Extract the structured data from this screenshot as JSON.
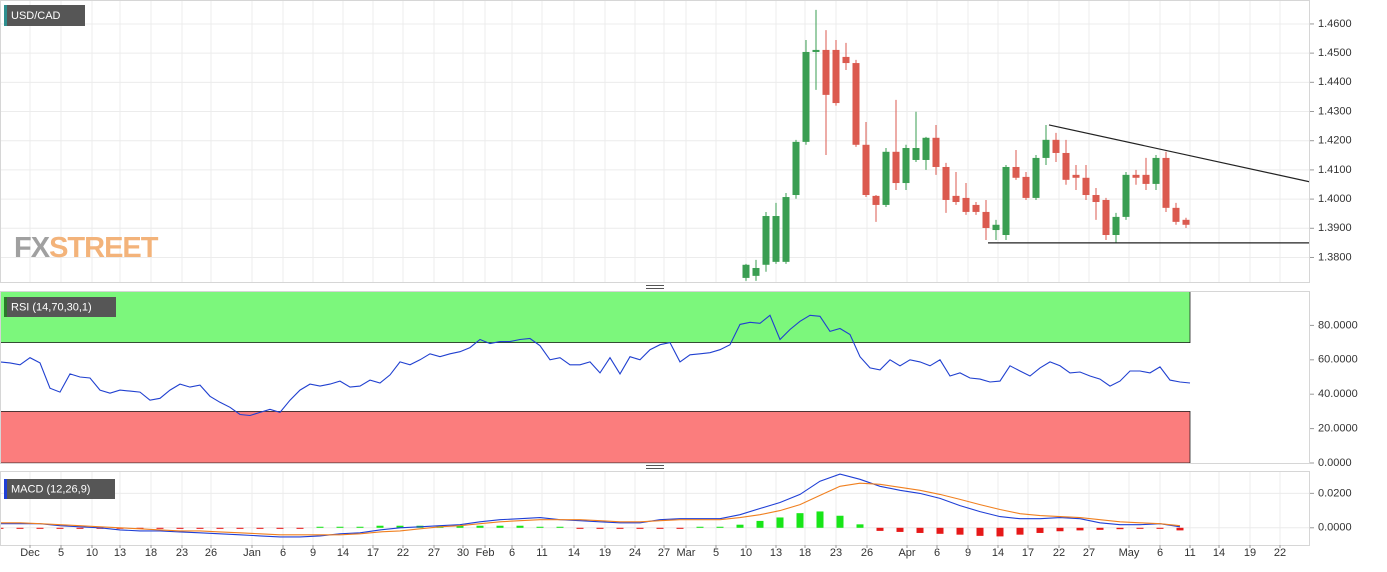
{
  "chart_data": [
    {
      "type": "candlestick",
      "title": "USD/CAD",
      "watermark": [
        "FX",
        "STREET"
      ],
      "up_color": "#3a9e52",
      "down_color": "#db5a4f",
      "grid": true,
      "xlim": [
        0,
        131
      ],
      "ylim": [
        1.3716,
        1.4682
      ],
      "yticks": [
        {
          "value": 1.38,
          "label": "1.3800"
        },
        {
          "value": 1.39,
          "label": "1.3900"
        },
        {
          "value": 1.4,
          "label": "1.4000"
        },
        {
          "value": 1.41,
          "label": "1.4100"
        },
        {
          "value": 1.42,
          "label": "1.4200"
        },
        {
          "value": 1.43,
          "label": "1.4300"
        },
        {
          "value": 1.44,
          "label": "1.4400"
        },
        {
          "value": 1.45,
          "label": "1.4500"
        },
        {
          "value": 1.46,
          "label": "1.4600"
        }
      ],
      "x": [
        74.6,
        75.6,
        76.6,
        77.6,
        78.6,
        79.6,
        80.6,
        81.6,
        82.6,
        83.6,
        84.6,
        85.6,
        86.6,
        87.6,
        88.6,
        89.6,
        90.6,
        91.6,
        92.6,
        93.6,
        94.6,
        95.6,
        96.6,
        97.6,
        98.6,
        99.6,
        100.6,
        101.6,
        102.6,
        103.6,
        104.6,
        105.6,
        106.6,
        107.6,
        108.6,
        109.6,
        110.6,
        111.6,
        112.6,
        113.6,
        114.6,
        115.6,
        116.6,
        117.6,
        118.6
      ],
      "open": [
        1.373,
        1.3737,
        1.3775,
        1.3785,
        1.3785,
        1.4014,
        1.4196,
        1.4504,
        1.4511,
        1.4511,
        1.4487,
        1.4466,
        1.4186,
        1.4011,
        1.398,
        1.4162,
        1.4055,
        1.4134,
        1.4134,
        1.421,
        1.411,
        1.4011,
        1.4004,
        1.398,
        1.3956,
        1.3894,
        1.3877,
        1.411,
        1.4076,
        1.4004,
        1.4141,
        1.4203,
        1.4158,
        1.4083,
        1.4073,
        1.4014,
        1.3997,
        1.3877,
        1.3939,
        1.4083,
        1.4083,
        1.4052,
        1.4141,
        1.397,
        1.3929
      ],
      "high": [
        1.3778,
        1.3792,
        1.3956,
        1.3987,
        1.4021,
        1.4203,
        1.4545,
        1.4648,
        1.4579,
        1.4545,
        1.4535,
        1.4477,
        1.4264,
        1.4014,
        1.4175,
        1.434,
        1.4186,
        1.4299,
        1.4213,
        1.4254,
        1.4124,
        1.4093,
        1.4055,
        1.399,
        1.3997,
        1.3929,
        1.4117,
        1.4168,
        1.4093,
        1.4151,
        1.4254,
        1.4227,
        1.4203,
        1.4117,
        1.4117,
        1.4038,
        1.4004,
        1.3953,
        1.4093,
        1.41,
        1.4141,
        1.4151,
        1.4162,
        1.3987,
        1.3936
      ],
      "low": [
        1.372,
        1.372,
        1.3751,
        1.3778,
        1.3778,
        1.4001,
        1.4186,
        1.4374,
        1.4151,
        1.432,
        1.4442,
        1.4179,
        1.4007,
        1.3922,
        1.3973,
        1.4031,
        1.4031,
        1.4127,
        1.41,
        1.4083,
        1.3953,
        1.398,
        1.3946,
        1.3946,
        1.386,
        1.386,
        1.386,
        1.4066,
        1.3997,
        1.3997,
        1.4117,
        1.4127,
        1.4049,
        1.4031,
        1.3997,
        1.3929,
        1.386,
        1.385,
        1.3929,
        1.4049,
        1.4031,
        1.4031,
        1.3956,
        1.3912,
        1.3901
      ],
      "close": [
        1.3775,
        1.3764,
        1.3942,
        1.3942,
        1.4007,
        1.4196,
        1.4504,
        1.4511,
        1.4357,
        1.4329,
        1.4466,
        1.4186,
        1.4014,
        1.398,
        1.4162,
        1.4055,
        1.4175,
        1.4175,
        1.421,
        1.411,
        1.3997,
        1.399,
        1.3956,
        1.3956,
        1.3901,
        1.3912,
        1.411,
        1.4073,
        1.4004,
        1.4141,
        1.4203,
        1.4158,
        1.4066,
        1.4073,
        1.4014,
        1.399,
        1.3877,
        1.3939,
        1.4083,
        1.4073,
        1.4052,
        1.4141,
        1.397,
        1.3922,
        1.3912
      ],
      "trendlines": [
        {
          "x": [
            104.9,
            131
          ],
          "y": [
            1.4254,
            1.4059
          ],
          "color": "#222222"
        },
        {
          "x": [
            98.8,
            131
          ],
          "y": [
            1.385,
            1.385
          ],
          "color": "#222222"
        }
      ]
    },
    {
      "type": "line",
      "title": "RSI (14,70,30,1)",
      "grid": false,
      "xlim": [
        0,
        131
      ],
      "ylim": [
        0,
        100
      ],
      "yticks": [
        {
          "value": 0,
          "label": "0.0000"
        },
        {
          "value": 20,
          "label": "20.0000"
        },
        {
          "value": 40,
          "label": "40.0000"
        },
        {
          "value": 60,
          "label": "60.0000"
        },
        {
          "value": 80,
          "label": "80.0000"
        }
      ],
      "bands": [
        {
          "from": 70,
          "to": 100,
          "xlim": [
            0,
            119
          ],
          "color": "#7cf77c"
        },
        {
          "from": 0,
          "to": 30,
          "xlim": [
            0,
            119
          ],
          "color": "#fb7d7d"
        }
      ],
      "x": [
        0,
        1,
        2,
        3,
        4,
        5,
        6,
        7,
        8,
        9,
        10,
        11,
        12,
        13,
        14,
        15,
        16,
        17,
        18,
        19,
        20,
        21,
        22,
        23,
        24,
        25,
        26,
        27,
        28,
        29,
        30,
        31,
        32,
        33,
        34,
        35,
        36,
        37,
        38,
        39,
        40,
        41,
        42,
        43,
        44,
        45,
        46,
        47,
        48,
        49,
        50,
        51,
        52,
        53,
        54,
        55,
        56,
        57,
        58,
        59,
        60,
        61,
        62,
        63,
        64,
        65,
        66,
        67,
        68,
        69,
        70,
        71,
        72,
        73,
        74,
        75,
        76,
        77,
        78,
        79,
        80,
        81,
        82,
        83,
        84,
        85,
        86,
        87,
        88,
        89,
        90,
        91,
        92,
        93,
        94,
        95,
        96,
        97,
        98,
        99,
        100,
        101,
        102,
        103,
        104,
        105,
        106,
        107,
        108,
        109,
        110,
        111,
        112,
        113,
        114,
        115,
        116,
        117,
        118,
        119
      ],
      "series": [
        {
          "color": "#2040d0",
          "values": [
            58.8,
            58.2,
            57.1,
            61.2,
            58.2,
            43.5,
            41.2,
            51.8,
            50.0,
            49.4,
            42.4,
            40.6,
            42.4,
            41.8,
            41.2,
            36.5,
            37.6,
            42.4,
            45.9,
            44.1,
            45.3,
            38.8,
            35.3,
            32.4,
            28.2,
            27.6,
            29.4,
            31.2,
            29.4,
            36.5,
            42.4,
            45.9,
            44.7,
            45.9,
            47.6,
            44.1,
            44.7,
            48.2,
            46.5,
            51.2,
            58.8,
            57.1,
            60.0,
            63.5,
            61.8,
            63.5,
            64.7,
            67.1,
            71.8,
            69.4,
            70.6,
            70.6,
            71.8,
            72.4,
            68.2,
            60.0,
            61.2,
            57.1,
            57.1,
            58.8,
            52.4,
            61.2,
            51.8,
            61.8,
            60.0,
            65.9,
            68.8,
            70.0,
            58.8,
            62.9,
            63.5,
            64.1,
            65.9,
            68.8,
            80.6,
            81.8,
            81.2,
            85.9,
            71.8,
            77.6,
            82.4,
            85.9,
            85.3,
            76.5,
            78.2,
            74.7,
            61.8,
            55.3,
            54.1,
            60.0,
            56.5,
            60.0,
            58.8,
            56.5,
            60.0,
            50.6,
            52.4,
            49.4,
            48.8,
            47.1,
            47.6,
            56.5,
            53.5,
            50.6,
            55.3,
            58.8,
            56.5,
            52.4,
            52.9,
            50.6,
            48.8,
            44.7,
            47.6,
            53.5,
            53.5,
            52.4,
            55.9,
            48.2,
            47.1,
            46.5
          ]
        }
      ]
    },
    {
      "type": "macd",
      "title": "MACD (12,26,9)",
      "grid": true,
      "xlim": [
        0,
        131
      ],
      "ylim": [
        -0.01,
        0.033
      ],
      "yticks": [
        {
          "value": 0,
          "label": "0.0000"
        },
        {
          "value": 0.02,
          "label": "0.0200"
        }
      ],
      "xticks": [
        {
          "value": 3.0,
          "label": "Dec"
        },
        {
          "value": 6.1,
          "label": "5"
        },
        {
          "value": 9.2,
          "label": "10"
        },
        {
          "value": 12.0,
          "label": "13"
        },
        {
          "value": 15.1,
          "label": "18"
        },
        {
          "value": 18.2,
          "label": "23"
        },
        {
          "value": 21.1,
          "label": "26"
        },
        {
          "value": 25.2,
          "label": "Jan"
        },
        {
          "value": 28.3,
          "label": "6"
        },
        {
          "value": 31.3,
          "label": "9"
        },
        {
          "value": 34.3,
          "label": "14"
        },
        {
          "value": 37.3,
          "label": "17"
        },
        {
          "value": 40.3,
          "label": "22"
        },
        {
          "value": 43.4,
          "label": "27"
        },
        {
          "value": 46.3,
          "label": "30"
        },
        {
          "value": 48.5,
          "label": "Feb"
        },
        {
          "value": 51.2,
          "label": "6"
        },
        {
          "value": 54.2,
          "label": "11"
        },
        {
          "value": 57.4,
          "label": "14"
        },
        {
          "value": 60.5,
          "label": "19"
        },
        {
          "value": 63.5,
          "label": "24"
        },
        {
          "value": 66.4,
          "label": "27"
        },
        {
          "value": 68.6,
          "label": "Mar"
        },
        {
          "value": 71.6,
          "label": "5"
        },
        {
          "value": 74.6,
          "label": "10"
        },
        {
          "value": 77.6,
          "label": "13"
        },
        {
          "value": 80.5,
          "label": "18"
        },
        {
          "value": 83.6,
          "label": "23"
        },
        {
          "value": 86.7,
          "label": "26"
        },
        {
          "value": 90.7,
          "label": "Apr"
        },
        {
          "value": 93.7,
          "label": "6"
        },
        {
          "value": 96.8,
          "label": "9"
        },
        {
          "value": 99.8,
          "label": "14"
        },
        {
          "value": 102.8,
          "label": "17"
        },
        {
          "value": 105.9,
          "label": "22"
        },
        {
          "value": 108.9,
          "label": "27"
        },
        {
          "value": 112.9,
          "label": "May"
        },
        {
          "value": 116.0,
          "label": "6"
        },
        {
          "value": 119.0,
          "label": "11"
        },
        {
          "value": 121.9,
          "label": "14"
        },
        {
          "value": 125.0,
          "label": "19"
        },
        {
          "value": 128.0,
          "label": "22"
        }
      ],
      "x": [
        0,
        2,
        4,
        6,
        8,
        10,
        12,
        14,
        16,
        18,
        20,
        22,
        24,
        26,
        28,
        30,
        32,
        34,
        36,
        38,
        40,
        42,
        44,
        46,
        48,
        50,
        52,
        54,
        56,
        58,
        60,
        62,
        64,
        66,
        68,
        70,
        72,
        74,
        76,
        78,
        80,
        82,
        84,
        86,
        88,
        90,
        92,
        94,
        96,
        98,
        100,
        102,
        104,
        106,
        108,
        110,
        112,
        114,
        116,
        118
      ],
      "lines": [
        {
          "color": "#1f3fd6",
          "values": [
            0.0024,
            0.0024,
            0.0024,
            0.0012,
            0.0006,
            0,
            -0.0012,
            -0.0018,
            -0.0018,
            -0.0024,
            -0.0029,
            -0.0035,
            -0.0041,
            -0.0047,
            -0.0053,
            -0.0053,
            -0.0047,
            -0.0035,
            -0.0029,
            -0.0012,
            0,
            0.0006,
            0.0012,
            0.0018,
            0.0035,
            0.0047,
            0.0053,
            0.0059,
            0.0047,
            0.0041,
            0.0035,
            0.0029,
            0.0029,
            0.0047,
            0.0053,
            0.0053,
            0.0053,
            0.0076,
            0.0112,
            0.0147,
            0.0194,
            0.0271,
            0.0312,
            0.0282,
            0.0241,
            0.0218,
            0.02,
            0.0171,
            0.0129,
            0.0094,
            0.0065,
            0.0053,
            0.0053,
            0.0059,
            0.0053,
            0.0029,
            0.0018,
            0.0018,
            0.0024,
            0.0006
          ]
        },
        {
          "color": "#f08020",
          "values": [
            0.0029,
            0.0029,
            0.0024,
            0.0018,
            0.0012,
            0.0006,
            0,
            -0.0006,
            -0.0012,
            -0.0018,
            -0.0018,
            -0.0024,
            -0.0029,
            -0.0035,
            -0.0041,
            -0.0041,
            -0.0041,
            -0.0041,
            -0.0035,
            -0.0024,
            -0.0018,
            -0.0006,
            0.0006,
            0.0012,
            0.0024,
            0.0035,
            0.0041,
            0.0047,
            0.0047,
            0.0047,
            0.0041,
            0.0035,
            0.0035,
            0.0041,
            0.0047,
            0.0047,
            0.0047,
            0.0059,
            0.0076,
            0.01,
            0.0135,
            0.0188,
            0.0241,
            0.0259,
            0.0253,
            0.0235,
            0.0218,
            0.0194,
            0.0165,
            0.0135,
            0.0106,
            0.0082,
            0.0071,
            0.0065,
            0.0059,
            0.0047,
            0.0035,
            0.0029,
            0.0024,
            0.0012
          ]
        }
      ],
      "histogram": {
        "positive_color": "#19e619",
        "negative_color": "#e61919",
        "values": [
          -0.0006,
          -0.0006,
          -0.0006,
          -0.0006,
          -0.0006,
          -0.0006,
          -0.0006,
          -0.0006,
          -0.0006,
          -0.0006,
          -0.0006,
          -0.0006,
          -0.0006,
          -0.0006,
          -0.0006,
          -0.0006,
          0.0006,
          0.0006,
          0.0006,
          0.0012,
          0.0012,
          0.0012,
          0.0012,
          0.0012,
          0.0012,
          0.0012,
          0.0012,
          0.0006,
          0.0006,
          -0.0006,
          -0.0006,
          -0.0006,
          -0.0006,
          -0.0006,
          -0.0006,
          0.0006,
          0.0006,
          0.0018,
          0.004,
          0.006,
          0.0085,
          0.0095,
          0.007,
          0.002,
          -0.0018,
          -0.0024,
          -0.003,
          -0.0035,
          -0.004,
          -0.0047,
          -0.005,
          -0.004,
          -0.003,
          -0.002,
          -0.0015,
          -0.0012,
          -0.0008,
          -0.0006,
          -0.0006,
          -0.0015
        ]
      }
    }
  ]
}
